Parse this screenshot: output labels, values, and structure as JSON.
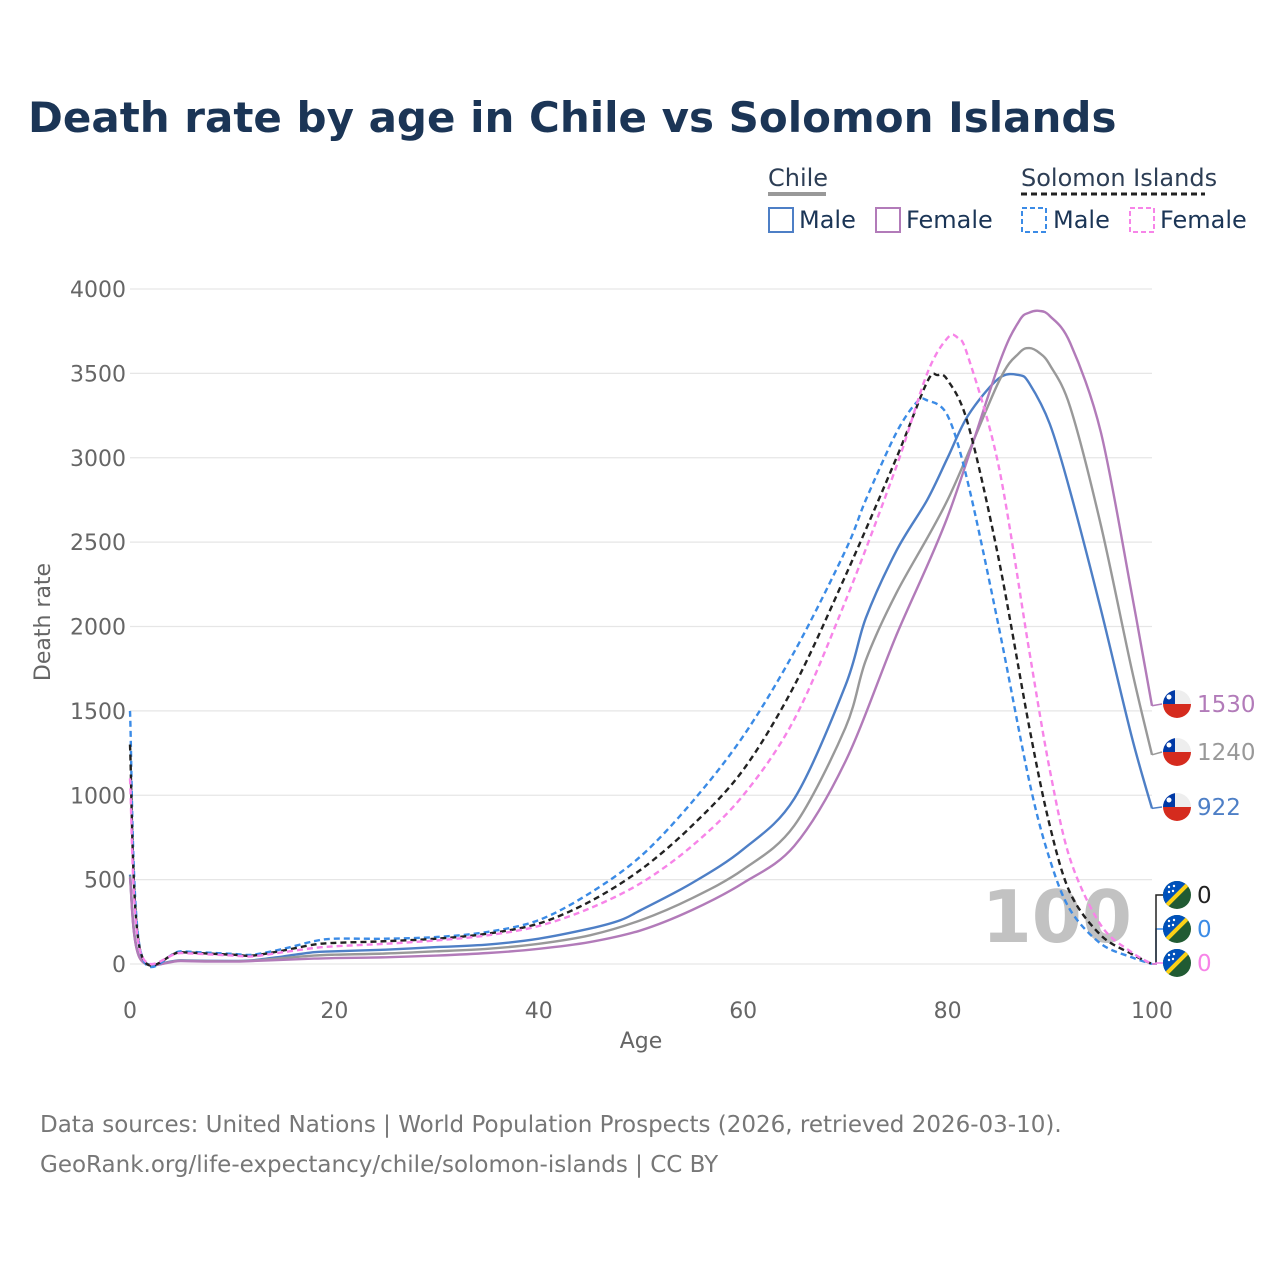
{
  "title": "Death rate by age in Chile vs Solomon Islands",
  "legend": {
    "groups": [
      {
        "name": "Chile",
        "line_color": "#999999",
        "dash": false
      },
      {
        "name": "Solomon Islands",
        "line_color": "#222222",
        "dash": true
      }
    ],
    "items": [
      {
        "label": "Male",
        "color": "#4e7fc6",
        "dash": false
      },
      {
        "label": "Female",
        "color": "#b27bb9",
        "dash": false
      },
      {
        "label": "Male",
        "color": "#3b8be6",
        "dash": true
      },
      {
        "label": "Female",
        "color": "#f784e8",
        "dash": true
      }
    ]
  },
  "watermark": "100",
  "footer": {
    "line1": "Data sources: United Nations | World Population Prospects (2026, retrieved 2026-03-10).",
    "line2": "GeoRank.org/life-expectancy/chile/solomon-islands | CC BY"
  },
  "chart_data": {
    "type": "line",
    "title": "Death rate by age in Chile vs Solomon Islands",
    "xlabel": "Age",
    "ylabel": "Death rate",
    "xlim": [
      0,
      100
    ],
    "ylim": [
      0,
      4000
    ],
    "xticks": [
      0,
      20,
      40,
      60,
      80,
      100
    ],
    "yticks": [
      0,
      500,
      1000,
      1500,
      2000,
      2500,
      3000,
      3500,
      4000
    ],
    "grid": true,
    "series": [
      {
        "name": "Chile Male",
        "color": "#4e7fc6",
        "dash": false,
        "end_label": "922",
        "flag": "chile",
        "x": [
          0,
          1,
          5,
          10,
          12,
          15,
          18,
          20,
          25,
          30,
          35,
          40,
          45,
          48,
          50,
          55,
          60,
          65,
          70,
          72,
          75,
          78,
          80,
          82,
          85,
          87,
          88,
          90,
          92,
          95,
          98,
          100
        ],
        "y": [
          530,
          35,
          22,
          18,
          22,
          45,
          70,
          75,
          85,
          100,
          115,
          150,
          210,
          260,
          320,
          480,
          680,
          980,
          1650,
          2050,
          2450,
          2750,
          3000,
          3250,
          3470,
          3490,
          3440,
          3200,
          2800,
          2100,
          1350,
          922
        ]
      },
      {
        "name": "Chile Both",
        "color": "#999999",
        "dash": false,
        "end_label": "1240",
        "flag": "chile",
        "x": [
          0,
          1,
          5,
          10,
          12,
          15,
          18,
          20,
          25,
          30,
          35,
          40,
          45,
          50,
          55,
          60,
          65,
          70,
          72,
          75,
          80,
          85,
          87,
          88,
          89,
          90,
          92,
          95,
          98,
          100
        ],
        "y": [
          520,
          32,
          20,
          16,
          20,
          35,
          50,
          55,
          62,
          75,
          90,
          120,
          170,
          260,
          390,
          560,
          820,
          1400,
          1800,
          2200,
          2750,
          3450,
          3620,
          3650,
          3620,
          3550,
          3300,
          2600,
          1750,
          1240
        ]
      },
      {
        "name": "Chile Female",
        "color": "#b27bb9",
        "dash": false,
        "end_label": "1530",
        "flag": "chile",
        "x": [
          0,
          1,
          5,
          10,
          12,
          15,
          18,
          20,
          25,
          30,
          35,
          40,
          45,
          50,
          55,
          60,
          65,
          70,
          75,
          80,
          85,
          87,
          88,
          89,
          90,
          92,
          95,
          98,
          100
        ],
        "y": [
          510,
          30,
          18,
          14,
          18,
          25,
          32,
          35,
          40,
          50,
          65,
          90,
          130,
          200,
          320,
          480,
          700,
          1200,
          1950,
          2650,
          3550,
          3810,
          3860,
          3870,
          3840,
          3680,
          3150,
          2200,
          1530
        ]
      },
      {
        "name": "Solomon Islands Male",
        "color": "#3b8be6",
        "dash": true,
        "end_label": "0",
        "flag": "solomon",
        "x": [
          0,
          1,
          5,
          10,
          12,
          15,
          18,
          20,
          25,
          30,
          35,
          40,
          45,
          50,
          55,
          60,
          65,
          70,
          72,
          75,
          77,
          78,
          80,
          82,
          85,
          88,
          90,
          92,
          95,
          98,
          100
        ],
        "y": [
          1500,
          85,
          75,
          60,
          55,
          90,
          135,
          150,
          150,
          160,
          190,
          260,
          420,
          640,
          960,
          1350,
          1850,
          2450,
          2750,
          3150,
          3330,
          3340,
          3250,
          2850,
          2000,
          1080,
          620,
          320,
          120,
          40,
          0
        ]
      },
      {
        "name": "Solomon Islands Both",
        "color": "#222222",
        "dash": true,
        "end_label": "0",
        "flag": "solomon",
        "x": [
          0,
          1,
          5,
          10,
          12,
          15,
          18,
          20,
          25,
          30,
          35,
          40,
          45,
          50,
          55,
          60,
          65,
          70,
          75,
          78,
          79,
          80,
          82,
          85,
          88,
          90,
          92,
          95,
          98,
          100
        ],
        "y": [
          1300,
          80,
          70,
          55,
          50,
          80,
          115,
          125,
          135,
          150,
          180,
          240,
          370,
          560,
          820,
          1150,
          1650,
          2300,
          3000,
          3450,
          3490,
          3460,
          3200,
          2400,
          1400,
          820,
          420,
          170,
          60,
          0
        ]
      },
      {
        "name": "Solomon Islands Female",
        "color": "#f784e8",
        "dash": true,
        "end_label": "0",
        "flag": "solomon",
        "x": [
          0,
          1,
          5,
          10,
          12,
          15,
          18,
          20,
          25,
          30,
          35,
          40,
          45,
          50,
          55,
          60,
          65,
          70,
          75,
          78,
          80,
          81,
          82,
          85,
          88,
          90,
          92,
          95,
          98,
          100
        ],
        "y": [
          1100,
          75,
          65,
          50,
          45,
          70,
          95,
          105,
          120,
          140,
          170,
          225,
          330,
          480,
          700,
          1000,
          1450,
          2150,
          2950,
          3500,
          3710,
          3710,
          3600,
          2950,
          1850,
          1150,
          620,
          230,
          70,
          0
        ]
      }
    ]
  }
}
